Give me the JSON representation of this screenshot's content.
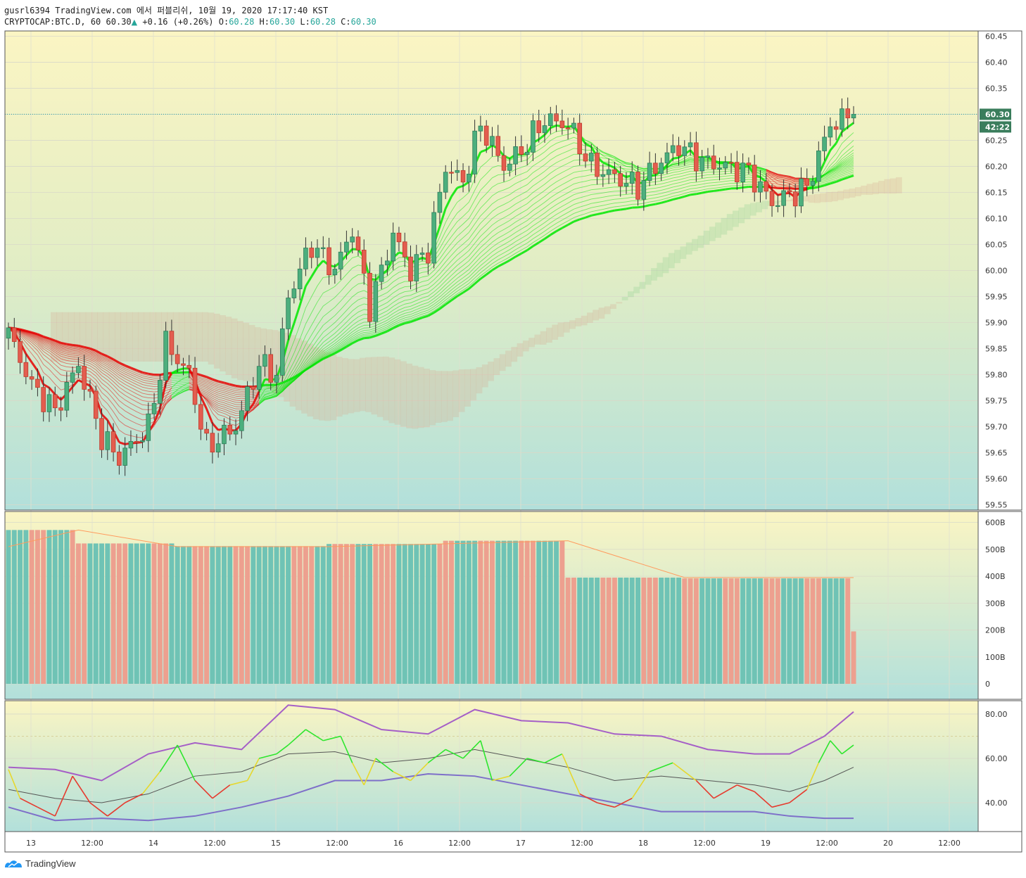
{
  "header": {
    "line1": "gusrl6394 TradingView.com 에서 퍼블리쉬, 10월 19, 2020 17:17:40 KST",
    "symbol": "CRYPTOCAP:BTC.D, 60",
    "last": "60.30",
    "change": "+0.16 (+0.26%)",
    "o_label": "O:",
    "o": "60.28",
    "h_label": "H:",
    "h": "60.30",
    "l_label": "L:",
    "l": "60.28",
    "c_label": "C:",
    "c": "60.30"
  },
  "price_tag": "60.30",
  "countdown_tag": "42:22",
  "footer": {
    "brand": "TradingView"
  },
  "colors": {
    "up": "#26a69a",
    "down": "#ef5350",
    "ribbon_up": "#00e600",
    "ribbon_down": "#e60000",
    "bg_top": "#fbf5c3",
    "bg_bottom": "#b2e0db",
    "rsi_band": "#a55fc7",
    "rsi_mid": "#555555",
    "vol_ma": "#ff9b5e"
  },
  "chart_data": [
    {
      "type": "candlestick",
      "panel": "price",
      "yticks": [
        "60.45",
        "60.40",
        "60.35",
        "60.30",
        "60.25",
        "60.20",
        "60.15",
        "60.10",
        "60.05",
        "60.00",
        "59.95",
        "59.90",
        "59.85",
        "59.80",
        "59.75",
        "59.70",
        "59.65",
        "59.60",
        "59.55"
      ],
      "ylim": [
        59.54,
        60.46
      ],
      "xticks": [
        "13",
        "12:00",
        "14",
        "12:00",
        "15",
        "12:00",
        "16",
        "12:00",
        "17",
        "12:00",
        "18",
        "12:00",
        "19",
        "12:00",
        "20",
        "12:00"
      ],
      "anchors_close": [
        [
          0,
          59.88
        ],
        [
          4,
          59.78
        ],
        [
          8,
          59.73
        ],
        [
          12,
          59.82
        ],
        [
          16,
          59.68
        ],
        [
          19,
          59.64
        ],
        [
          24,
          59.7
        ],
        [
          27,
          59.86
        ],
        [
          31,
          59.8
        ],
        [
          34,
          59.66
        ],
        [
          39,
          59.7
        ],
        [
          43,
          59.82
        ],
        [
          46,
          59.8
        ],
        [
          48,
          59.95
        ],
        [
          52,
          60.05
        ],
        [
          56,
          60.0
        ],
        [
          59,
          60.08
        ],
        [
          62,
          59.93
        ],
        [
          66,
          60.07
        ],
        [
          69,
          60.0
        ],
        [
          72,
          60.04
        ],
        [
          75,
          60.2
        ],
        [
          78,
          60.17
        ],
        [
          81,
          60.28
        ],
        [
          85,
          60.2
        ],
        [
          88,
          60.23
        ],
        [
          92,
          60.29
        ],
        [
          96,
          60.28
        ],
        [
          100,
          60.2
        ],
        [
          104,
          60.18
        ],
        [
          108,
          60.16
        ],
        [
          111,
          60.2
        ],
        [
          115,
          60.24
        ],
        [
          119,
          60.21
        ],
        [
          123,
          60.2
        ],
        [
          127,
          60.19
        ],
        [
          131,
          60.13
        ],
        [
          135,
          60.15
        ],
        [
          137,
          60.16
        ],
        [
          141,
          60.28
        ],
        [
          145,
          60.3
        ]
      ],
      "n_bars": 146
    },
    {
      "type": "bar",
      "panel": "volume",
      "yticks": [
        "600B",
        "500B",
        "400B",
        "300B",
        "200B",
        "100B",
        "0"
      ],
      "ylim": [
        0,
        620
      ],
      "levels": [
        [
          0,
          572
        ],
        [
          12,
          522
        ],
        [
          29,
          512
        ],
        [
          55,
          520
        ],
        [
          75,
          532
        ],
        [
          96,
          395
        ],
        [
          116,
          392
        ],
        [
          145,
          195
        ]
      ],
      "ma_points": [
        [
          0,
          510
        ],
        [
          12,
          572
        ],
        [
          29,
          510
        ],
        [
          55,
          510
        ],
        [
          96,
          532
        ],
        [
          116,
          395
        ],
        [
          145,
          395
        ]
      ]
    },
    {
      "type": "line",
      "panel": "rsi",
      "yticks": [
        "80.00",
        "60.00",
        "40.00"
      ],
      "ylim": [
        27,
        86
      ],
      "rsi": [
        [
          0,
          55
        ],
        [
          2,
          42
        ],
        [
          5,
          38
        ],
        [
          8,
          34
        ],
        [
          11,
          52
        ],
        [
          14,
          40
        ],
        [
          17,
          34
        ],
        [
          20,
          40
        ],
        [
          23,
          44
        ],
        [
          26,
          54
        ],
        [
          29,
          66
        ],
        [
          32,
          50
        ],
        [
          35,
          42
        ],
        [
          38,
          48
        ],
        [
          41,
          50
        ],
        [
          43,
          60
        ],
        [
          46,
          62
        ],
        [
          48,
          66
        ],
        [
          51,
          73
        ],
        [
          54,
          68
        ],
        [
          57,
          70
        ],
        [
          59,
          58
        ],
        [
          61,
          48
        ],
        [
          63,
          60
        ],
        [
          66,
          54
        ],
        [
          69,
          50
        ],
        [
          72,
          58
        ],
        [
          75,
          64
        ],
        [
          78,
          60
        ],
        [
          81,
          68
        ],
        [
          83,
          50
        ],
        [
          86,
          52
        ],
        [
          89,
          60
        ],
        [
          92,
          58
        ],
        [
          95,
          62
        ],
        [
          98,
          44
        ],
        [
          101,
          40
        ],
        [
          104,
          38
        ],
        [
          107,
          42
        ],
        [
          110,
          54
        ],
        [
          114,
          58
        ],
        [
          118,
          50
        ],
        [
          121,
          42
        ],
        [
          125,
          48
        ],
        [
          128,
          45
        ],
        [
          131,
          38
        ],
        [
          134,
          40
        ],
        [
          137,
          46
        ],
        [
          139,
          58
        ],
        [
          141,
          68
        ],
        [
          143,
          62
        ],
        [
          145,
          66
        ]
      ],
      "rsi_ma": [
        [
          0,
          46
        ],
        [
          8,
          42
        ],
        [
          16,
          40
        ],
        [
          24,
          44
        ],
        [
          32,
          52
        ],
        [
          40,
          54
        ],
        [
          48,
          62
        ],
        [
          56,
          63
        ],
        [
          64,
          58
        ],
        [
          72,
          60
        ],
        [
          80,
          64
        ],
        [
          88,
          60
        ],
        [
          96,
          56
        ],
        [
          104,
          50
        ],
        [
          112,
          52
        ],
        [
          120,
          50
        ],
        [
          128,
          48
        ],
        [
          134,
          45
        ],
        [
          140,
          50
        ],
        [
          145,
          56
        ]
      ],
      "band_upper": [
        [
          0,
          56
        ],
        [
          8,
          55
        ],
        [
          16,
          50
        ],
        [
          24,
          62
        ],
        [
          32,
          67
        ],
        [
          40,
          64
        ],
        [
          48,
          84
        ],
        [
          56,
          82
        ],
        [
          64,
          73
        ],
        [
          72,
          71
        ],
        [
          80,
          82
        ],
        [
          88,
          77
        ],
        [
          96,
          76
        ],
        [
          104,
          71
        ],
        [
          112,
          70
        ],
        [
          120,
          64
        ],
        [
          128,
          62
        ],
        [
          134,
          62
        ],
        [
          140,
          70
        ],
        [
          145,
          81
        ]
      ],
      "band_lower": [
        [
          0,
          38
        ],
        [
          8,
          32
        ],
        [
          16,
          33
        ],
        [
          24,
          32
        ],
        [
          32,
          34
        ],
        [
          40,
          38
        ],
        [
          48,
          43
        ],
        [
          56,
          50
        ],
        [
          64,
          50
        ],
        [
          72,
          53
        ],
        [
          80,
          52
        ],
        [
          88,
          48
        ],
        [
          96,
          44
        ],
        [
          104,
          40
        ],
        [
          112,
          36
        ],
        [
          120,
          36
        ],
        [
          128,
          36
        ],
        [
          134,
          34
        ],
        [
          140,
          33
        ],
        [
          145,
          33
        ]
      ]
    }
  ]
}
